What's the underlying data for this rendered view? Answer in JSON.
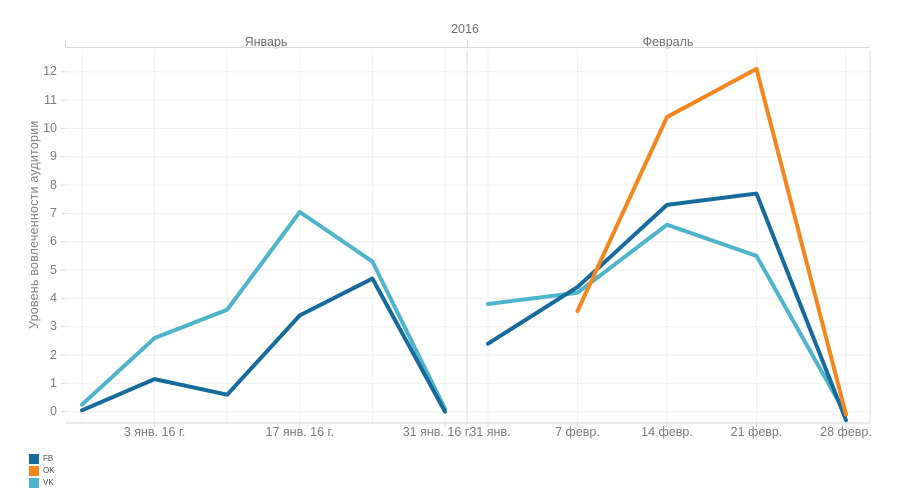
{
  "chart_data": {
    "type": "line",
    "year_header": "2016",
    "ylabel": "Уровень вовлеченности аудитории",
    "y_ticks": [
      0,
      1,
      2,
      3,
      4,
      5,
      6,
      7,
      8,
      9,
      10,
      11,
      12
    ],
    "ylim": [
      -0.4,
      12.8
    ],
    "grid": true,
    "legend_position": "bottom-left",
    "panels": [
      {
        "label": "Январь",
        "x_tick_labels": [
          "3 янв. 16 г.",
          "17 янв. 16 г.",
          "31 янв. 16 г."
        ],
        "x_tick_indices": [
          1,
          3,
          5
        ],
        "points_count": 6,
        "series": [
          {
            "name": "FB",
            "values": [
              0.05,
              1.15,
              0.6,
              3.4,
              4.7,
              0.0
            ]
          },
          {
            "name": "VK",
            "values": [
              0.25,
              2.6,
              3.6,
              7.05,
              5.3,
              0.1
            ]
          }
        ]
      },
      {
        "label": "Февраль",
        "x_tick_labels": [
          "31 янв.",
          "7 февр.",
          "14 февр.",
          "21 февр.",
          "28 февр."
        ],
        "x_tick_indices": [
          0,
          1,
          2,
          3,
          4
        ],
        "points_count": 5,
        "series": [
          {
            "name": "FB",
            "values": [
              2.4,
              4.4,
              7.3,
              7.7,
              -0.3
            ]
          },
          {
            "name": "OK",
            "values": [
              null,
              3.55,
              10.4,
              12.1,
              -0.1
            ]
          },
          {
            "name": "VK",
            "values": [
              3.8,
              4.2,
              6.6,
              5.5,
              -0.1
            ]
          }
        ]
      }
    ],
    "legend": [
      {
        "label": "FB",
        "color": "#176a9c"
      },
      {
        "label": "OK",
        "color": "#f5861d"
      },
      {
        "label": "VK",
        "color": "#4db4cb"
      }
    ]
  }
}
